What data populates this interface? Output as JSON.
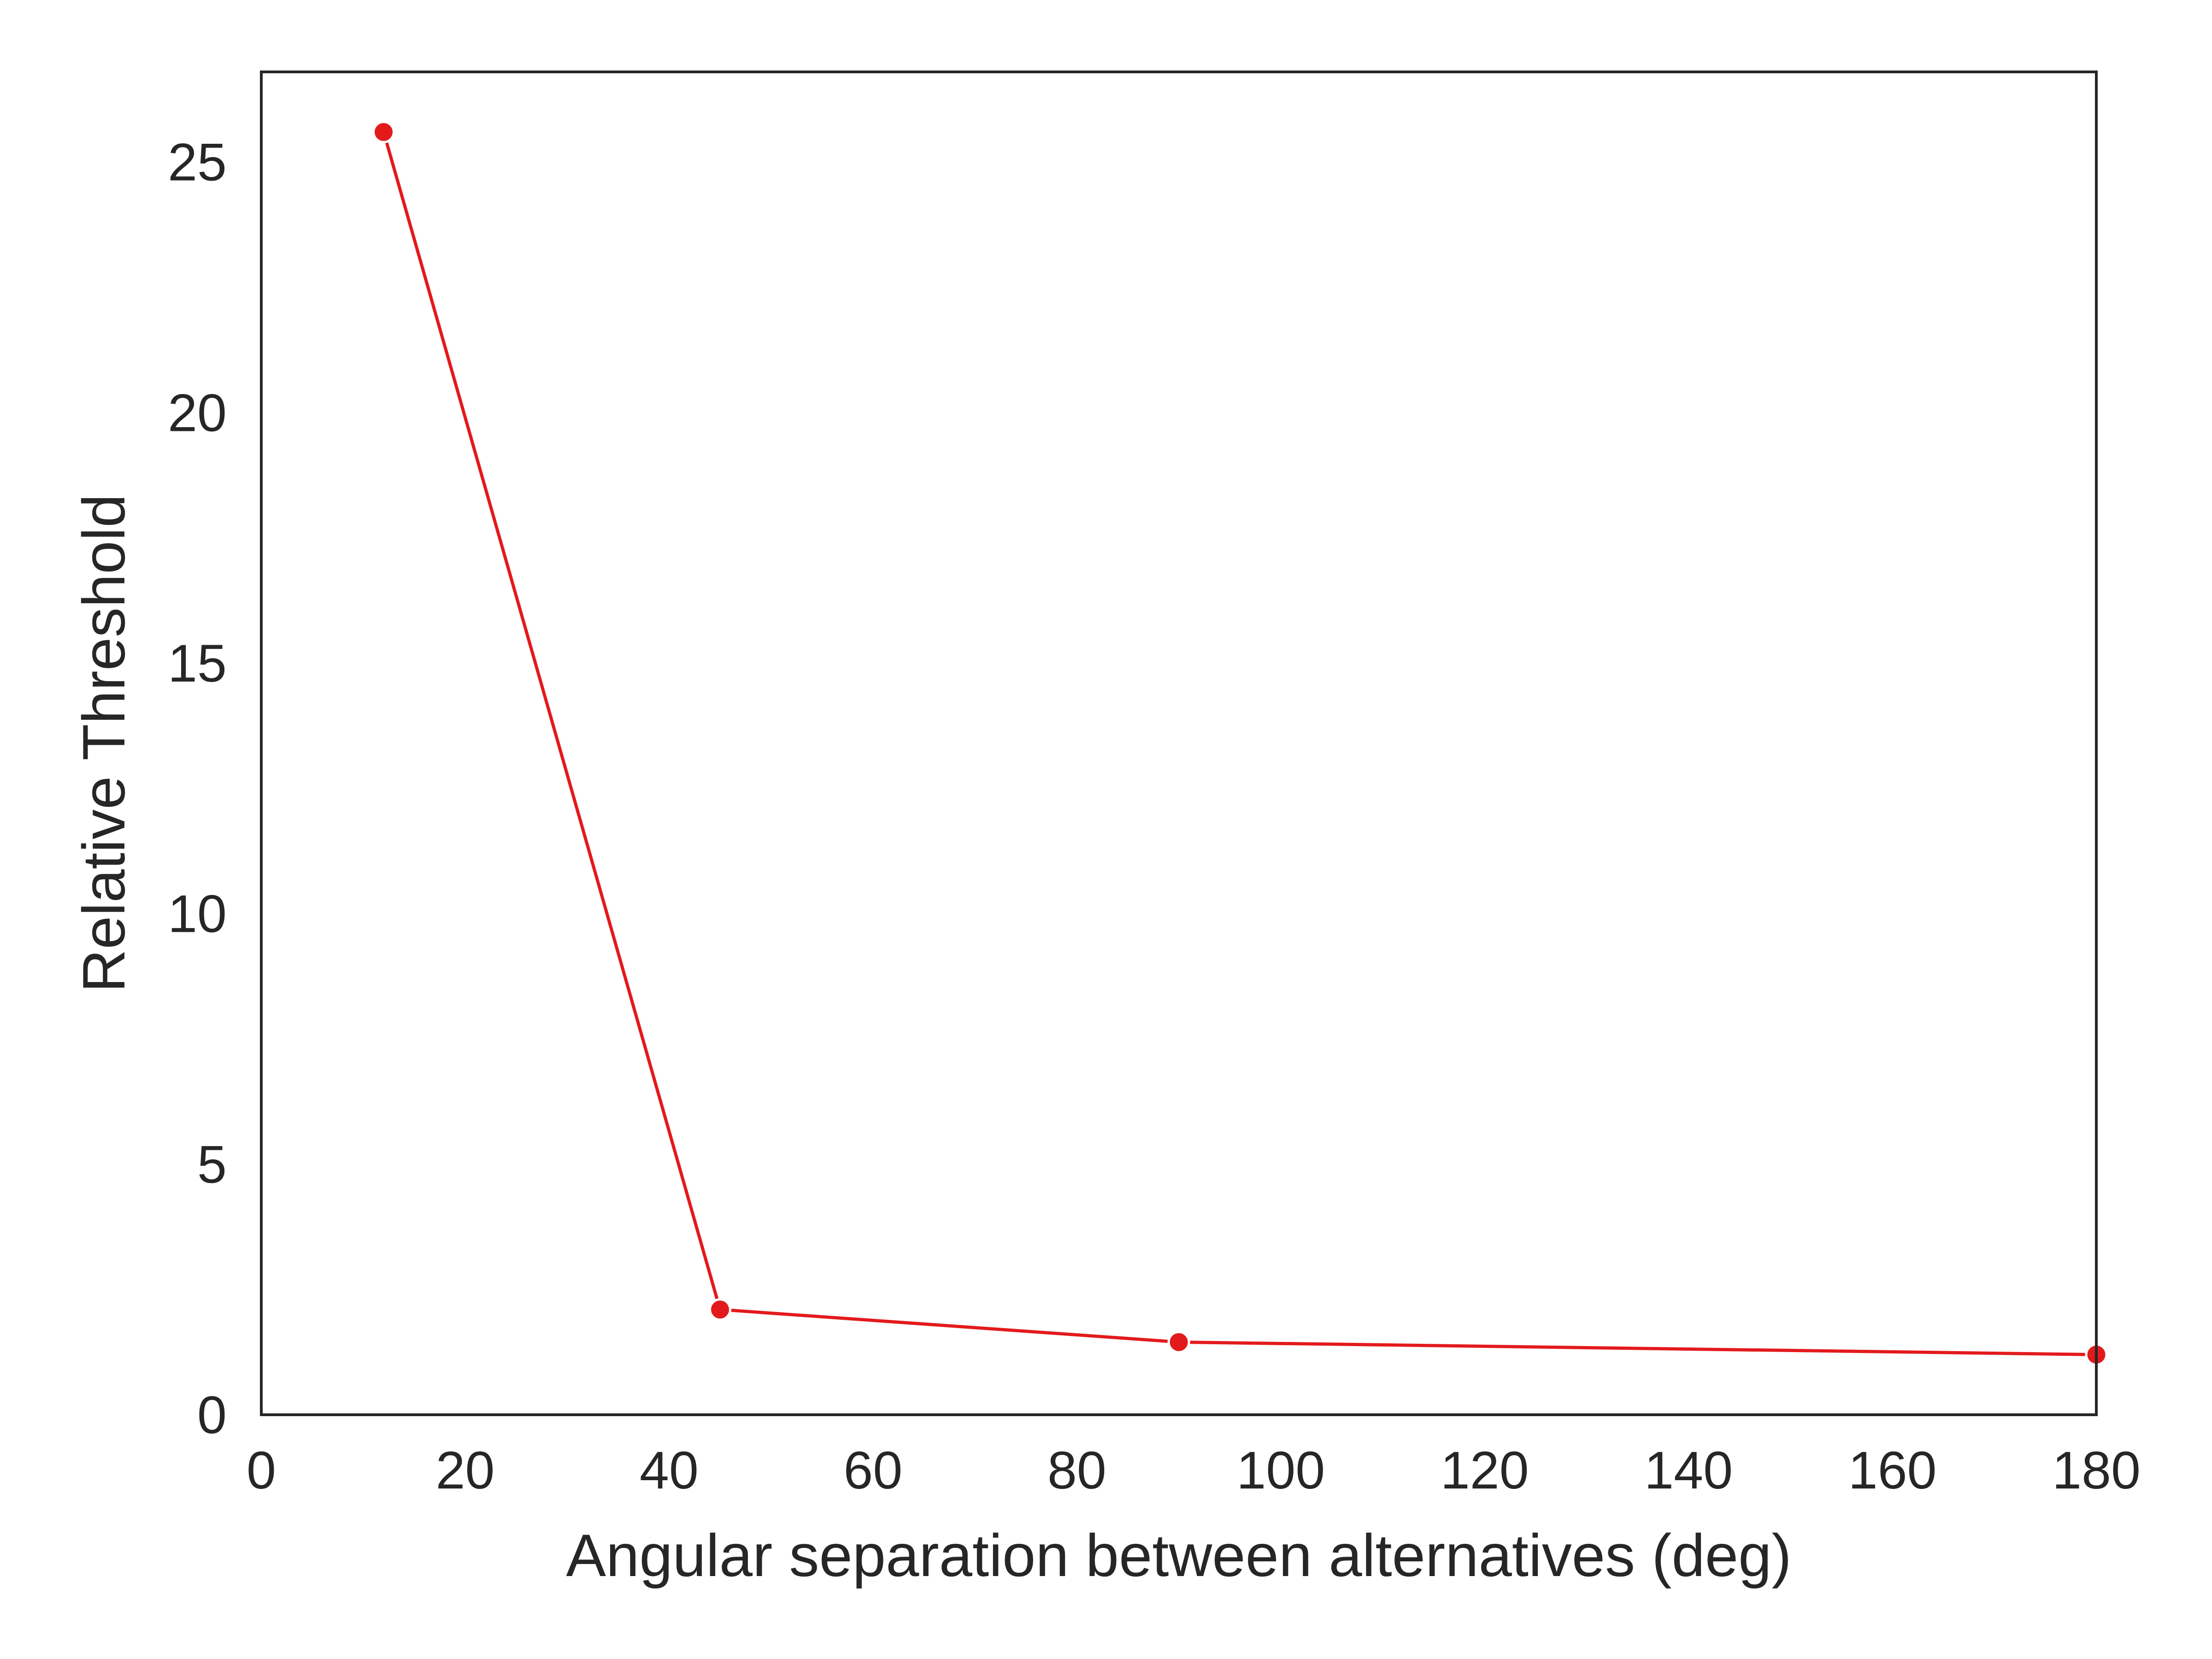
{
  "chart_data": {
    "type": "line",
    "xlabel": "Angular separation between alternatives (deg)",
    "ylabel": "Relative Threshold",
    "xlim": [
      0,
      180
    ],
    "ylim": [
      0,
      26.8
    ],
    "xticks": [
      0,
      20,
      40,
      60,
      80,
      100,
      120,
      140,
      160,
      180
    ],
    "yticks": [
      0,
      5,
      10,
      15,
      20,
      25
    ],
    "grid": false,
    "legend": "none",
    "series": [
      {
        "color": "#e31a1c",
        "x": [
          12,
          45,
          90,
          180
        ],
        "y": [
          25.6,
          2.1,
          1.45,
          1.2
        ]
      }
    ]
  }
}
